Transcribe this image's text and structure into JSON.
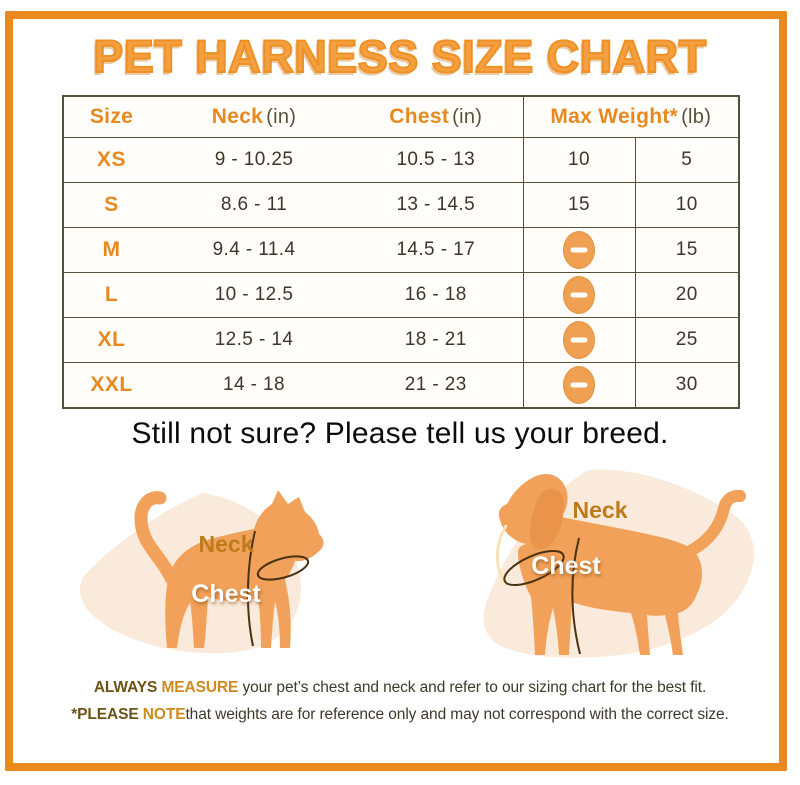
{
  "title": "PET HARNESS SIZE CHART",
  "table": {
    "headers": {
      "size": {
        "name": "Size",
        "unit": ""
      },
      "neck": {
        "name": "Neck",
        "unit": "(in)"
      },
      "chest": {
        "name": "Chest",
        "unit": "(in)"
      },
      "max_weight": {
        "name": "Max Weight*",
        "unit": "(lb)"
      }
    },
    "rows": [
      {
        "size": "XS",
        "neck": "9 - 10.25",
        "chest": "10.5 - 13",
        "w1": "10",
        "w2": "5"
      },
      {
        "size": "S",
        "neck": "8.6 - 11",
        "chest": "13 - 14.5",
        "w1": "15",
        "w2": "10"
      },
      {
        "size": "M",
        "neck": "9.4 - 11.4",
        "chest": "14.5 - 17",
        "w1": "",
        "w2": "15"
      },
      {
        "size": "L",
        "neck": "10 - 12.5",
        "chest": "16 - 18",
        "w1": "",
        "w2": "20"
      },
      {
        "size": "XL",
        "neck": "12.5 - 14",
        "chest": "18 - 21",
        "w1": "",
        "w2": "25"
      },
      {
        "size": "XXL",
        "neck": "14 - 18",
        "chest": "21 - 23",
        "w1": "",
        "w2": "30"
      }
    ],
    "na_icon": "minus-not-available-icon"
  },
  "subtitle": "Still not sure? Please tell us your breed.",
  "diagrams": {
    "cat": {
      "neck_label": "Neck",
      "chest_label": "Chest"
    },
    "dog": {
      "neck_label": "Neck",
      "chest_label": "Chest"
    }
  },
  "notes": {
    "line1": {
      "em_dark": "ALWAYS ",
      "em_orange": "MEASURE",
      "rest": " your pet’s chest and neck and refer to our sizing chart for the best fit."
    },
    "line2": {
      "em_dark": "*PLEASE ",
      "em_orange": "NOTE",
      "rest": "that weights are for reference only and may not correspond with the correct size."
    }
  },
  "colors": {
    "frame": "#E9891E",
    "title": "#F4A041",
    "header_orange": "#E8891F",
    "unit_dark": "#57523A",
    "table_border": "#55503C",
    "text_dark": "#3A372B",
    "na_badge": "#F0A052",
    "blob": "#FAEADC",
    "animal_silhouette": "#F1A159",
    "neck_label": "#BE7A1B",
    "chest_label": "#FFFFFF",
    "band_line": "#4A3112"
  },
  "chart_data": {
    "type": "table",
    "title": "PET HARNESS SIZE CHART",
    "columns": [
      "Size",
      "Neck (in)",
      "Chest (in)",
      "Max Weight* (lb) col 1",
      "Max Weight* (lb) col 2"
    ],
    "rows": [
      [
        "XS",
        "9 - 10.25",
        "10.5 - 13",
        "10",
        "5"
      ],
      [
        "S",
        "8.6 - 11",
        "13 - 14.5",
        "15",
        "10"
      ],
      [
        "M",
        "9.4 - 11.4",
        "14.5 - 17",
        null,
        "15"
      ],
      [
        "L",
        "10 - 12.5",
        "16 - 18",
        null,
        "20"
      ],
      [
        "XL",
        "12.5 - 14",
        "18 - 21",
        null,
        "25"
      ],
      [
        "XXL",
        "14 - 18",
        "21 - 23",
        null,
        "30"
      ]
    ],
    "notes": "Cells with null show an orange 'not available' minus badge."
  }
}
